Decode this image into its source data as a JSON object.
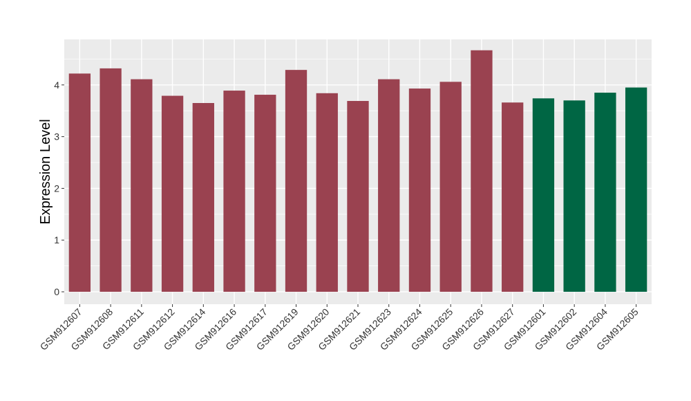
{
  "chart_data": {
    "type": "bar",
    "title": "",
    "xlabel": "",
    "ylabel": "Expression Level",
    "ylim": [
      -0.24,
      4.88
    ],
    "yticks": [
      0,
      1,
      2,
      3,
      4
    ],
    "grid": true,
    "legend": "none",
    "panel_background": "#EBEBEB",
    "grid_color": "#FFFFFF",
    "categories": [
      "GSM912607",
      "GSM912608",
      "GSM912611",
      "GSM912612",
      "GSM912614",
      "GSM912616",
      "GSM912617",
      "GSM912619",
      "GSM912620",
      "GSM912621",
      "GSM912623",
      "GSM912624",
      "GSM912625",
      "GSM912626",
      "GSM912627",
      "GSM912601",
      "GSM912602",
      "GSM912604",
      "GSM912605"
    ],
    "values": [
      4.22,
      4.32,
      4.11,
      3.79,
      3.65,
      3.89,
      3.81,
      4.29,
      3.84,
      3.69,
      4.11,
      3.93,
      4.06,
      4.67,
      3.66,
      3.74,
      3.7,
      3.85,
      3.95
    ],
    "colors": [
      "#9A4250",
      "#9A4250",
      "#9A4250",
      "#9A4250",
      "#9A4250",
      "#9A4250",
      "#9A4250",
      "#9A4250",
      "#9A4250",
      "#9A4250",
      "#9A4250",
      "#9A4250",
      "#9A4250",
      "#9A4250",
      "#9A4250",
      "#006644",
      "#006644",
      "#006644",
      "#006644"
    ]
  }
}
